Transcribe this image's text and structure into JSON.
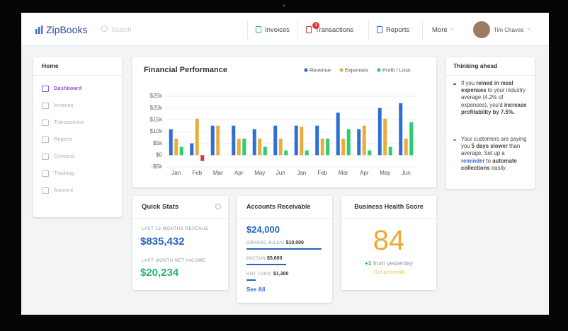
{
  "nav": {
    "brand": "ZipBooks",
    "search": "Search",
    "items": [
      "Invoices",
      "Transactions",
      "Reports",
      "More"
    ],
    "badge": 3,
    "user": "Tim Chaves"
  },
  "sidebar": {
    "title": "Home",
    "items": [
      "Dashboard",
      "Invoices",
      "Transactions",
      "Reports",
      "Contacts",
      "Tracking",
      "Account"
    ]
  },
  "chart_data": {
    "type": "bar",
    "title": "Financial Performance",
    "categories": [
      "Jan",
      "Feb",
      "Mar",
      "Apr",
      "May",
      "Jun",
      "Jan",
      "Feb",
      "Mar",
      "Apr",
      "May",
      "Jun"
    ],
    "series": [
      {
        "name": "Revenue",
        "color": "#2f6fd3",
        "values": [
          11000,
          5000,
          12500,
          12500,
          11000,
          12500,
          12500,
          12500,
          18000,
          11000,
          20000,
          22000
        ]
      },
      {
        "name": "Expenses",
        "color": "#eaad3c",
        "values": [
          7000,
          15500,
          12500,
          7000,
          7000,
          7000,
          12000,
          7000,
          7000,
          12500,
          15500,
          7000
        ]
      },
      {
        "name": "Profit / Loss",
        "color": "#2ecc71",
        "values": [
          3500,
          -2500,
          0,
          7000,
          3500,
          2000,
          2000,
          7000,
          11000,
          2000,
          3500,
          14000
        ]
      }
    ],
    "negative_color": "#e0333d",
    "ylim": [
      -5000,
      25000
    ],
    "yticks": [
      {
        "value": -5000,
        "label": "-$5k"
      },
      {
        "value": 0,
        "label": "$0"
      },
      {
        "value": 5000,
        "label": "$5k"
      },
      {
        "value": 10000,
        "label": "$10k"
      },
      {
        "value": 15000,
        "label": "$15k"
      },
      {
        "value": 20000,
        "label": "$20k"
      },
      {
        "value": 25000,
        "label": "$25k"
      }
    ],
    "grid": true
  },
  "thinking": {
    "title": "Thinking ahead",
    "items": [
      [
        {
          "text": "If you "
        },
        {
          "text": "reined in meal expenses",
          "bold": true
        },
        {
          "text": " to your industry average (4.2% of expenses), you'd "
        },
        {
          "text": "increase profitability by 7.5%.",
          "bold": true
        }
      ],
      [
        {
          "text": "Your customers are paying you "
        },
        {
          "text": "5 days slower",
          "bold": true
        },
        {
          "text": " than average. Set up a "
        },
        {
          "text": "reminder",
          "bold": true,
          "link": true
        },
        {
          "text": " to "
        },
        {
          "text": "automate collections",
          "bold": true
        },
        {
          "text": " easily."
        }
      ]
    ]
  },
  "quick_stats": {
    "title": "Quick Stats",
    "stats": [
      {
        "label": "LAST 12 MONTHS REVENUE",
        "value": "$835,432"
      },
      {
        "label": "LAST MONTH NET INCOME",
        "value": "$20,234"
      }
    ]
  },
  "receivable": {
    "title": "Accounts Receivable",
    "total": "$24,000",
    "rows": [
      {
        "name": "ORANGE JULIUS",
        "amount": "$10,000"
      },
      {
        "name": "PACSUN",
        "amount": "$5,600"
      },
      {
        "name": "HOT TOPIC",
        "amount": "$1,300"
      }
    ],
    "link": "See All"
  },
  "health": {
    "title": "Business Health Score",
    "score": 84,
    "change": "+1",
    "change_text": "from yesterday",
    "percentile": "71st percentile"
  }
}
